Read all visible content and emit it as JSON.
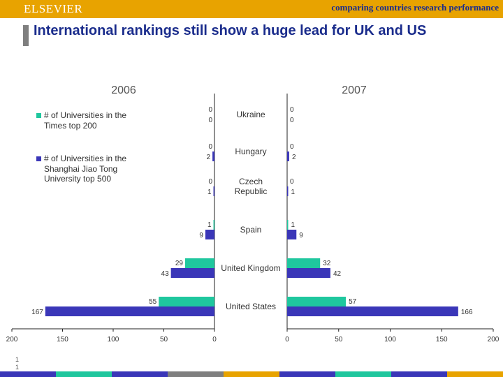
{
  "header": {
    "logo": "ELSEVIER",
    "tagline": "comparing countries research performance"
  },
  "slide": {
    "title": "International rankings still show a huge lead for UK and US",
    "number_line1": "1",
    "number_line2": "1"
  },
  "legend": {
    "items": [
      {
        "label": "# of Universities in the Times top 200",
        "color": "#1fc79e"
      },
      {
        "label": "# of Universities in the Shanghai Jiao Tong University top 500",
        "color": "#3a36b8"
      }
    ]
  },
  "colors": {
    "header_bg": "#e8a300",
    "title": "#1a2c8c",
    "times": "#1fc79e",
    "shanghai": "#3a36b8",
    "bottom_bar": [
      "#3a36b8",
      "#1fc79e",
      "#3a36b8",
      "#7f7f7f",
      "#e8a300",
      "#3a36b8",
      "#1fc79e",
      "#3a36b8",
      "#e8a300"
    ]
  },
  "chart_data": {
    "type": "bar",
    "orientation": "horizontal",
    "layout": "back-to-back",
    "panels": [
      {
        "title": "2006",
        "xlim": [
          200,
          0
        ],
        "ticks": [
          "200",
          "150",
          "100",
          "50",
          "0"
        ]
      },
      {
        "title": "2007",
        "xlim": [
          0,
          200
        ],
        "ticks": [
          "0",
          "50",
          "100",
          "150",
          "200"
        ]
      }
    ],
    "categories": [
      "Ukraine",
      "Hungary",
      "Czech Republic",
      "Spain",
      "United Kingdom",
      "United States"
    ],
    "series": [
      {
        "name": "# of Universities in the Times top 200",
        "values_2006": [
          0,
          0,
          0,
          1,
          29,
          55
        ],
        "values_2007": [
          0,
          0,
          0,
          1,
          32,
          57
        ]
      },
      {
        "name": "# of Universities in the Shanghai Jiao Tong University top 500",
        "values_2006": [
          0,
          2,
          1,
          9,
          43,
          167
        ],
        "values_2007": [
          0,
          2,
          1,
          9,
          42,
          166
        ]
      }
    ]
  }
}
